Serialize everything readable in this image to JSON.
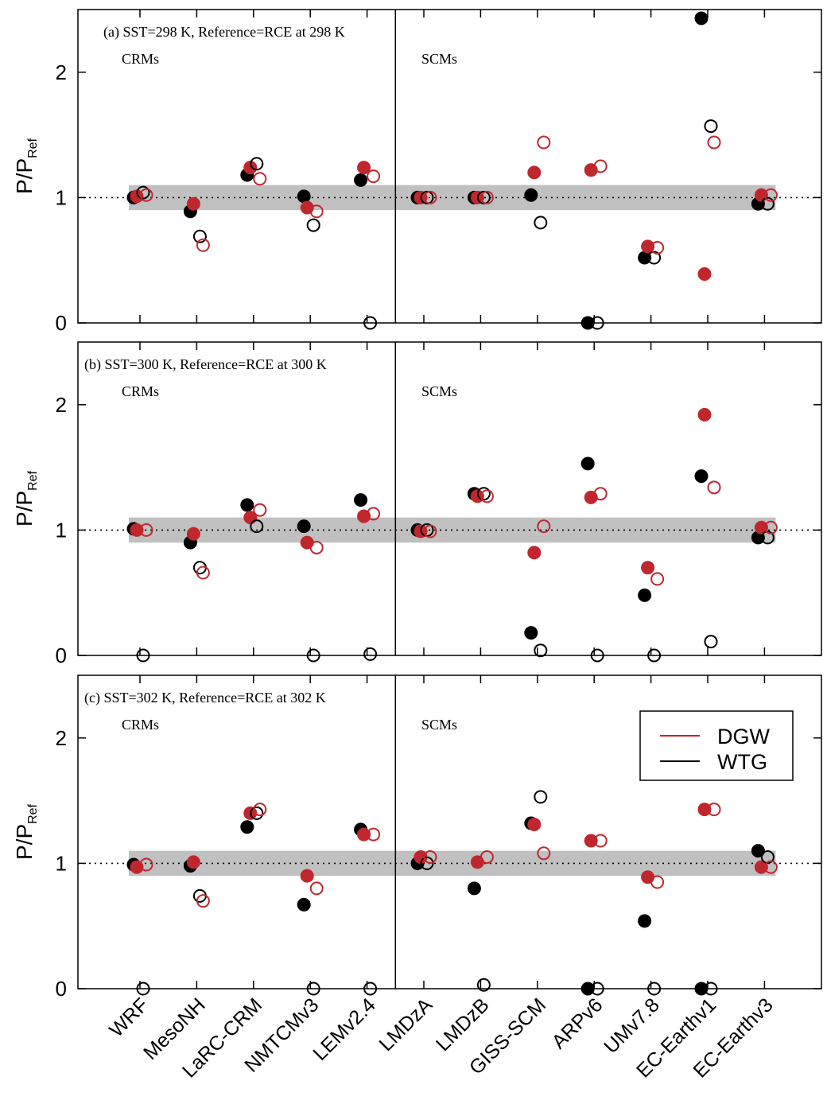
{
  "chart_data": {
    "type": "scatter",
    "categories": [
      "WRF",
      "MesoNH",
      "LaRC-CRM",
      "NMTCMv3",
      "LEMv2.4",
      "LMDzA",
      "LMDzB",
      "GISS-SCM",
      "ARPv6",
      "UMv7.8",
      "EC-Earthv1",
      "EC-Earthv3"
    ],
    "group_labels": [
      "CRMs",
      "SCMs"
    ],
    "ylabel": "P/P",
    "ylabel_sub": "Ref",
    "ylim": [
      0,
      2.5
    ],
    "yticks": [
      0,
      1,
      2
    ],
    "band": [
      0.9,
      1.1
    ],
    "ref_line": 1,
    "series": [
      {
        "name": "DGW",
        "color": "#c0272d"
      },
      {
        "name": "WTG",
        "color": "#000000"
      }
    ],
    "legend": {
      "panel": 2,
      "loc": "upper right"
    },
    "panels": [
      {
        "annotation": "(a) SST=298 K, Reference=RCE at 298 K",
        "series": [
          {
            "values": [
              1.01,
              0.95,
              1.24,
              0.92,
              1.24,
              1.0,
              1.0,
              1.2,
              1.22,
              0.61,
              0.39,
              1.02
            ],
            "open_values": [
              1.02,
              0.62,
              1.15,
              0.89,
              1.17,
              1.0,
              1.0,
              1.44,
              1.25,
              0.6,
              1.44,
              1.02
            ]
          },
          {
            "values": [
              1.0,
              0.89,
              1.18,
              1.01,
              1.14,
              1.0,
              1.0,
              1.02,
              0,
              0.52,
              2.43,
              0.95
            ],
            "open_values": [
              1.04,
              0.69,
              1.27,
              0.78,
              0,
              1.0,
              1.0,
              0.8,
              0,
              0.52,
              1.57,
              0.95
            ]
          }
        ]
      },
      {
        "annotation": "(b) SST=300 K, Reference=RCE at 300 K",
        "series": [
          {
            "values": [
              1.0,
              0.97,
              1.1,
              0.9,
              1.11,
              0.99,
              1.27,
              0.82,
              1.26,
              0.7,
              1.92,
              1.02
            ],
            "open_values": [
              1.0,
              0.66,
              1.16,
              0.86,
              1.13,
              0.99,
              1.27,
              1.03,
              1.29,
              0.61,
              1.34,
              1.02
            ]
          },
          {
            "values": [
              1.01,
              0.9,
              1.2,
              1.03,
              1.24,
              1.0,
              1.29,
              0.18,
              1.53,
              0.48,
              1.43,
              0.94
            ],
            "open_values": [
              0,
              0.7,
              1.03,
              0,
              0.01,
              1.0,
              1.29,
              0.04,
              0,
              0,
              0.11,
              0.94
            ]
          }
        ]
      },
      {
        "annotation": "(c) SST=302 K, Reference=RCE at 302 K",
        "series": [
          {
            "values": [
              0.97,
              1.01,
              1.4,
              0.9,
              1.23,
              1.05,
              1.01,
              1.31,
              1.18,
              0.89,
              1.43,
              0.97
            ],
            "open_values": [
              0.99,
              0.7,
              1.43,
              0.8,
              1.23,
              1.05,
              1.05,
              1.08,
              1.18,
              0.85,
              1.43,
              0.97
            ]
          },
          {
            "values": [
              0.99,
              0.98,
              1.29,
              0.67,
              1.27,
              1.0,
              0.8,
              1.32,
              0,
              0.54,
              0,
              1.1
            ],
            "open_values": [
              0,
              0.74,
              1.4,
              0,
              0,
              1.0,
              0.03,
              1.53,
              0,
              0,
              0,
              1.05
            ]
          }
        ]
      }
    ]
  }
}
